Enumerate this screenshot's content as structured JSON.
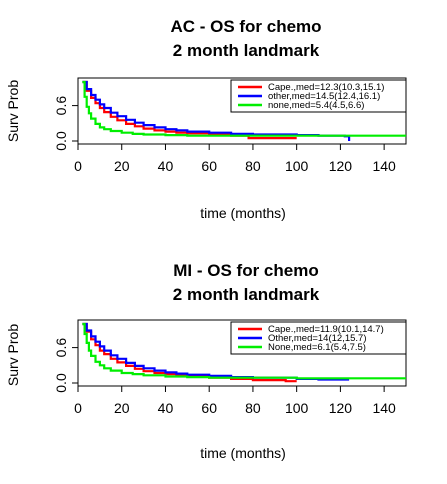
{
  "chart_data": [
    {
      "type": "line",
      "title": "AC - OS for chemo",
      "subtitle": "2 month landmark",
      "xlabel": "time (months)",
      "ylabel": "Surv Prob",
      "xlim": [
        0,
        150
      ],
      "ylim": [
        0,
        1
      ],
      "xticks": [
        "0",
        "20",
        "40",
        "60",
        "80",
        "100",
        "120",
        "140"
      ],
      "yticks": [
        "0.0",
        "0.6"
      ],
      "legend_position": "top-right",
      "series": [
        {
          "name": "Cape.,med=12.3(10.3,15.1)",
          "color": "#ff0000",
          "x": [
            2,
            4,
            6,
            8,
            10,
            12,
            15,
            18,
            22,
            26,
            30,
            35,
            40,
            45,
            50,
            60,
            70,
            78,
            100
          ],
          "y": [
            1.0,
            0.85,
            0.73,
            0.64,
            0.56,
            0.49,
            0.41,
            0.35,
            0.29,
            0.25,
            0.21,
            0.18,
            0.16,
            0.14,
            0.13,
            0.11,
            0.09,
            0.05,
            0.05
          ]
        },
        {
          "name": "other,med=14.5(12.4,16.1)",
          "color": "#0000ff",
          "x": [
            2,
            4,
            6,
            8,
            10,
            12,
            15,
            18,
            22,
            26,
            30,
            35,
            40,
            45,
            50,
            60,
            70,
            80,
            100,
            110,
            122,
            124
          ],
          "y": [
            1.0,
            0.88,
            0.78,
            0.7,
            0.62,
            0.56,
            0.48,
            0.42,
            0.36,
            0.31,
            0.27,
            0.23,
            0.2,
            0.18,
            0.16,
            0.14,
            0.12,
            0.11,
            0.1,
            0.09,
            0.08,
            0.0
          ]
        },
        {
          "name": "none,med=5.4(4.5,6.6)",
          "color": "#00ee00",
          "x": [
            2,
            3,
            4,
            5,
            6,
            8,
            10,
            12,
            15,
            20,
            25,
            30,
            40,
            50,
            60,
            80,
            100,
            150
          ],
          "y": [
            1.0,
            0.75,
            0.58,
            0.47,
            0.38,
            0.29,
            0.23,
            0.2,
            0.17,
            0.14,
            0.12,
            0.11,
            0.1,
            0.09,
            0.09,
            0.09,
            0.09,
            0.09
          ]
        }
      ]
    },
    {
      "type": "line",
      "title": "MI - OS for chemo",
      "subtitle": "2 month landmark",
      "xlabel": "time (months)",
      "ylabel": "Surv Prob",
      "xlim": [
        0,
        150
      ],
      "ylim": [
        0,
        1
      ],
      "xticks": [
        "0",
        "20",
        "40",
        "60",
        "80",
        "100",
        "120",
        "140"
      ],
      "yticks": [
        "0.0",
        "0.6"
      ],
      "legend_position": "top-right",
      "series": [
        {
          "name": "Cape.,med=11.9(10.1,14.7)",
          "color": "#ff0000",
          "x": [
            2,
            4,
            6,
            8,
            10,
            12,
            15,
            18,
            22,
            26,
            30,
            35,
            40,
            45,
            50,
            60,
            70,
            80,
            95,
            100
          ],
          "y": [
            1.0,
            0.87,
            0.74,
            0.64,
            0.55,
            0.49,
            0.41,
            0.35,
            0.29,
            0.24,
            0.2,
            0.17,
            0.15,
            0.13,
            0.11,
            0.09,
            0.07,
            0.05,
            0.03,
            0.03
          ]
        },
        {
          "name": "Other,med=14(12,15.7)",
          "color": "#0000ff",
          "x": [
            2,
            4,
            6,
            8,
            10,
            12,
            15,
            18,
            22,
            26,
            30,
            35,
            40,
            45,
            50,
            60,
            70,
            80,
            100,
            110,
            124
          ],
          "y": [
            1.0,
            0.89,
            0.79,
            0.7,
            0.62,
            0.55,
            0.47,
            0.41,
            0.34,
            0.29,
            0.25,
            0.21,
            0.18,
            0.16,
            0.14,
            0.12,
            0.1,
            0.09,
            0.07,
            0.06,
            0.06
          ]
        },
        {
          "name": "None,med=6.1(5.4,7.5)",
          "color": "#00ee00",
          "x": [
            2,
            3,
            4,
            5,
            6,
            8,
            10,
            12,
            15,
            20,
            25,
            30,
            40,
            50,
            60,
            80,
            100,
            150
          ],
          "y": [
            1.0,
            0.83,
            0.68,
            0.55,
            0.46,
            0.36,
            0.3,
            0.25,
            0.21,
            0.17,
            0.15,
            0.13,
            0.11,
            0.1,
            0.09,
            0.09,
            0.08,
            0.08
          ]
        }
      ]
    }
  ]
}
